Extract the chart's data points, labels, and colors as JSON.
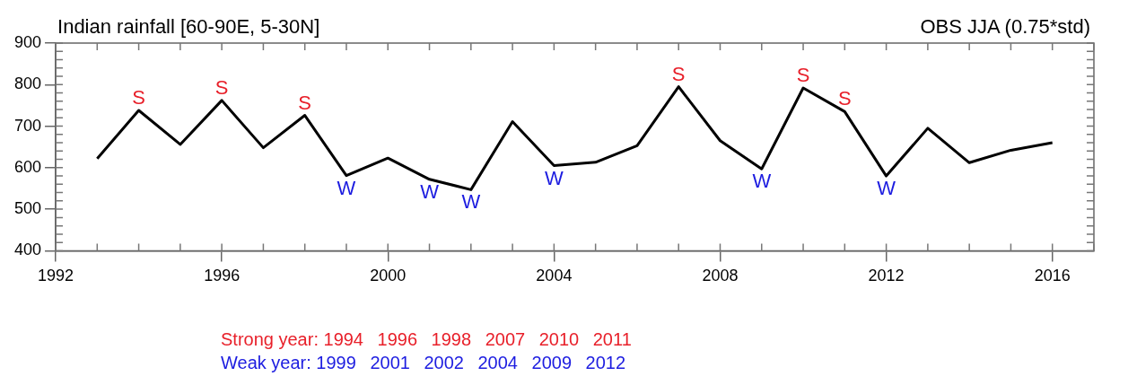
{
  "chart_data": {
    "type": "line",
    "title": "Indian rainfall [60-90E, 5-30N]",
    "subtitle": "OBS JJA (0.75*std)",
    "x": [
      1993,
      1994,
      1995,
      1996,
      1997,
      1998,
      1999,
      2000,
      2001,
      2002,
      2003,
      2004,
      2005,
      2006,
      2007,
      2008,
      2009,
      2010,
      2011,
      2012,
      2013,
      2014,
      2015,
      2016
    ],
    "series": [
      {
        "color": "#000000",
        "values": [
          622,
          738,
          656,
          762,
          648,
          726,
          581,
          623,
          572,
          547,
          711,
          605,
          613,
          653,
          795,
          665,
          597,
          792,
          735,
          580,
          695,
          612,
          642,
          660
        ]
      }
    ],
    "annotations": [
      "Strong year: 1994  1996  1998  2007  2010  2011",
      "Weak year: 1999  2001  2002  2004  2009  2012",
      {
        "text": "S",
        "x": 1994,
        "y": 738
      },
      {
        "text": "S",
        "x": 1996,
        "y": 762
      },
      {
        "text": "S",
        "x": 1998,
        "y": 726
      },
      {
        "text": "S",
        "x": 2007,
        "y": 795
      },
      {
        "text": "S",
        "x": 2010,
        "y": 792
      },
      {
        "text": "S",
        "x": 2011,
        "y": 735
      },
      {
        "text": "W",
        "x": 1999,
        "y": 581
      },
      {
        "text": "W",
        "x": 2001,
        "y": 572
      },
      {
        "text": "W",
        "x": 2002,
        "y": 547
      },
      {
        "text": "W",
        "x": 2004,
        "y": 605
      },
      {
        "text": "W",
        "x": 2009,
        "y": 597
      },
      {
        "text": "W",
        "x": 2012,
        "y": 580
      }
    ],
    "xlim": [
      1992,
      2017
    ],
    "xticks": [
      1992,
      1996,
      2000,
      2004,
      2008,
      2012,
      2016
    ],
    "ylim": [
      400,
      900
    ],
    "yticks": [
      400,
      500,
      600,
      700,
      800,
      900
    ],
    "grid": false,
    "legend": false,
    "line_style": "solid",
    "marker": "none"
  }
}
